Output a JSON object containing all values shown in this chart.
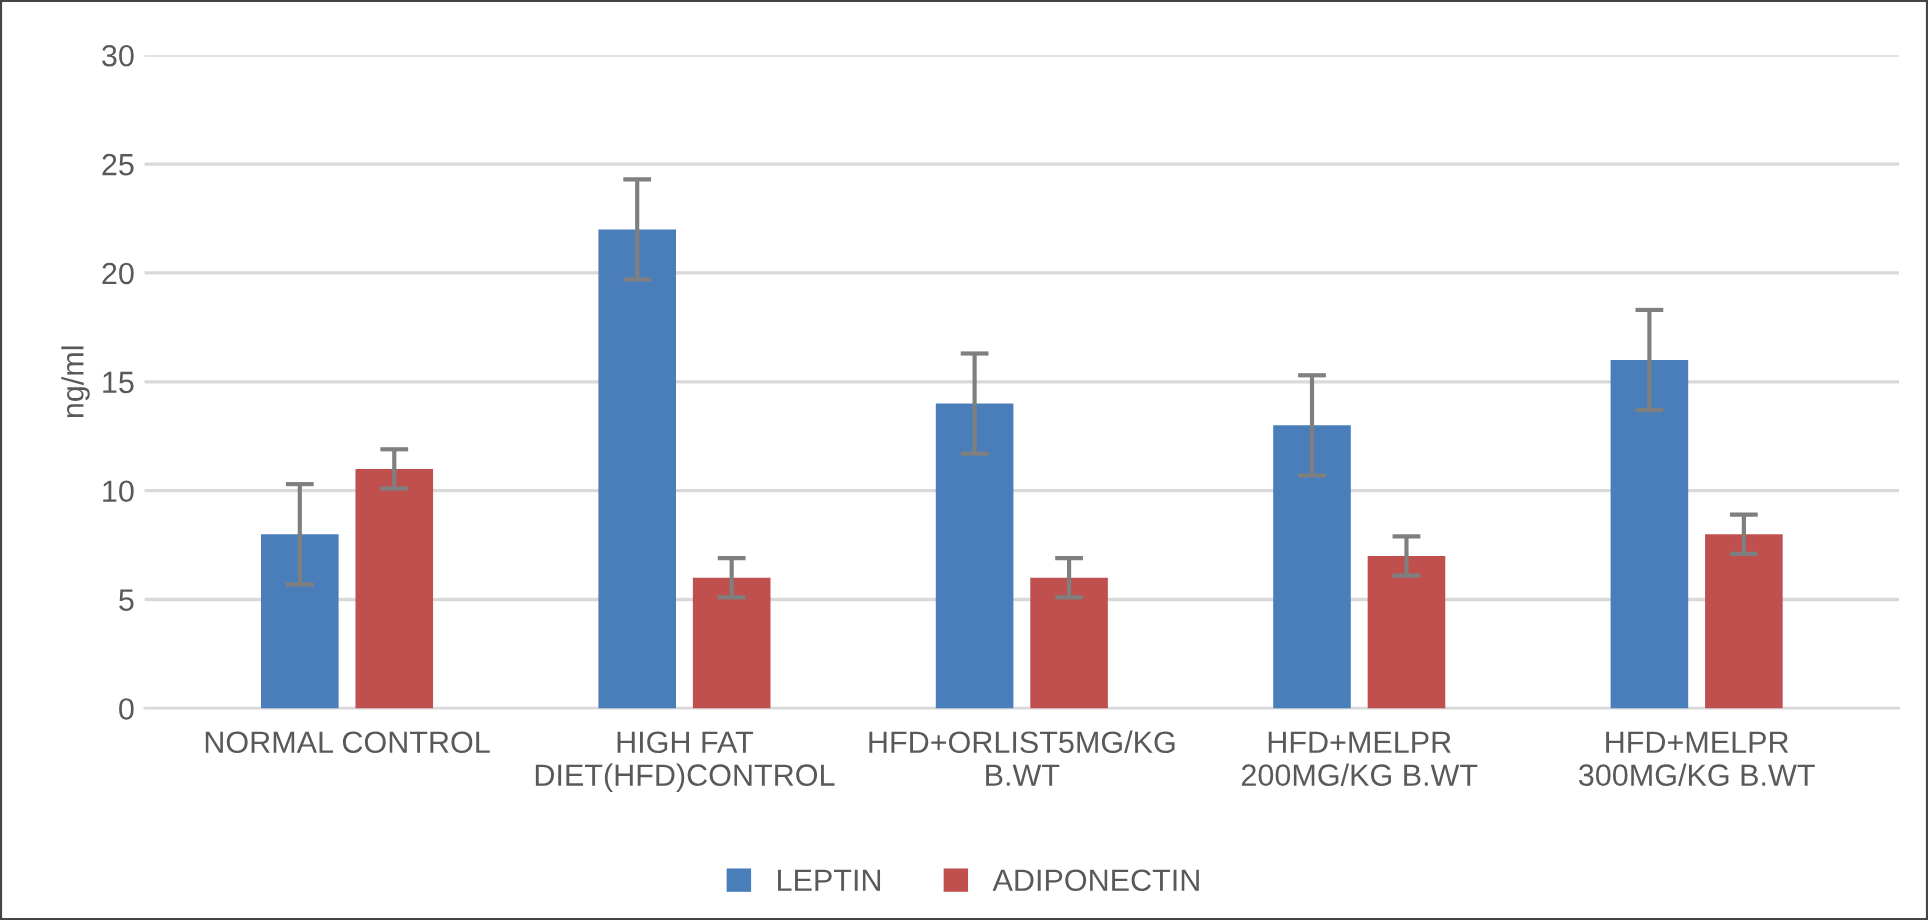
{
  "chart_data": {
    "type": "bar",
    "ylabel": "ng/ml",
    "categories": [
      "NORMAL CONTROL",
      "HIGH FAT\nDIET(HFD)CONTROL",
      "HFD+ORLIST5MG/KG\nB.WT",
      "HFD+MELPR\n200MG/KG B.WT",
      "HFD+MELPR\n300MG/KG B.WT"
    ],
    "series": [
      {
        "name": "LEPTIN",
        "color": "#4a7ebb",
        "values": [
          8,
          22,
          14,
          13,
          16
        ],
        "errors": [
          2.3,
          2.3,
          2.3,
          2.3,
          2.3
        ]
      },
      {
        "name": "ADIPONECTIN",
        "color": "#c0504d",
        "values": [
          11,
          6,
          6,
          7,
          8
        ],
        "errors": [
          0.9,
          0.9,
          0.9,
          0.9,
          0.9
        ]
      }
    ],
    "ylim": [
      0,
      30
    ],
    "yticks": [
      0,
      5,
      10,
      15,
      20,
      25,
      30
    ],
    "grid": "y",
    "legend": "bottom"
  }
}
